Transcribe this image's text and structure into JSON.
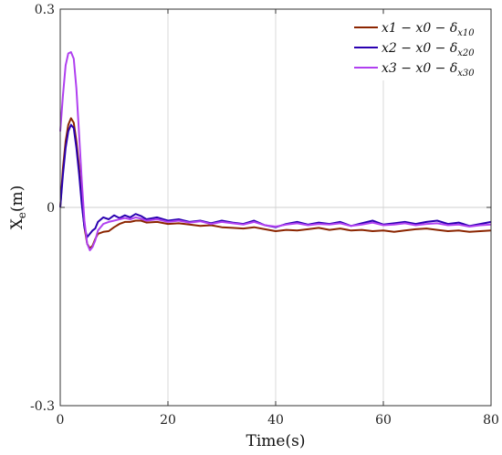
{
  "chart_data": {
    "type": "line",
    "title": "",
    "xlabel": "Time(s)",
    "ylabel_main": "X",
    "ylabel_sub": "e",
    "ylabel_unit": "(m)",
    "xlim": [
      0,
      80
    ],
    "ylim": [
      -0.3,
      0.3
    ],
    "x_ticks": [
      0,
      20,
      40,
      60,
      80
    ],
    "x_tick_labels": [
      "0",
      "20",
      "40",
      "60",
      "80"
    ],
    "y_ticks": [
      -0.3,
      0,
      0.3
    ],
    "y_tick_labels": [
      "-0.3",
      "0",
      "0.3"
    ],
    "grid": "x",
    "legend_position": "top-right",
    "series": [
      {
        "name": "x1 − x0 − δx10",
        "legend_main": "x1 − x0 − δ",
        "legend_sub": "x10",
        "color": "#8b2500",
        "x": [
          0,
          0.5,
          1,
          1.5,
          2,
          2.5,
          3,
          3.5,
          4,
          4.5,
          5,
          5.5,
          6,
          6.5,
          7,
          8,
          9,
          10,
          11,
          12,
          13,
          14,
          15,
          16,
          18,
          20,
          22,
          24,
          26,
          28,
          30,
          32,
          34,
          36,
          38,
          40,
          42,
          44,
          46,
          48,
          50,
          52,
          54,
          56,
          58,
          60,
          62,
          64,
          66,
          68,
          70,
          72,
          74,
          76,
          78,
          80
        ],
        "y": [
          0.0,
          0.06,
          0.1,
          0.125,
          0.135,
          0.128,
          0.1,
          0.06,
          0.01,
          -0.03,
          -0.055,
          -0.062,
          -0.058,
          -0.048,
          -0.04,
          -0.037,
          -0.036,
          -0.03,
          -0.025,
          -0.022,
          -0.022,
          -0.02,
          -0.02,
          -0.023,
          -0.022,
          -0.025,
          -0.024,
          -0.026,
          -0.028,
          -0.027,
          -0.03,
          -0.031,
          -0.032,
          -0.03,
          -0.033,
          -0.036,
          -0.034,
          -0.035,
          -0.033,
          -0.031,
          -0.034,
          -0.032,
          -0.035,
          -0.034,
          -0.036,
          -0.035,
          -0.037,
          -0.035,
          -0.033,
          -0.032,
          -0.034,
          -0.036,
          -0.035,
          -0.037,
          -0.036,
          -0.035
        ]
      },
      {
        "name": "x2 − x0 − δx20",
        "legend_main": "x2 − x0 − δ",
        "legend_sub": "x20",
        "color": "#2a00b0",
        "x": [
          0,
          0.5,
          1,
          1.5,
          2,
          2.5,
          3,
          3.5,
          4,
          4.5,
          5,
          5.5,
          6,
          6.5,
          7,
          8,
          9,
          10,
          11,
          12,
          13,
          14,
          15,
          16,
          18,
          20,
          22,
          24,
          26,
          28,
          30,
          32,
          34,
          36,
          38,
          40,
          42,
          44,
          46,
          48,
          50,
          52,
          54,
          56,
          58,
          60,
          62,
          64,
          66,
          68,
          70,
          72,
          74,
          76,
          78,
          80
        ],
        "y": [
          0.0,
          0.05,
          0.09,
          0.115,
          0.125,
          0.12,
          0.09,
          0.05,
          0.005,
          -0.03,
          -0.045,
          -0.04,
          -0.035,
          -0.032,
          -0.022,
          -0.015,
          -0.018,
          -0.012,
          -0.016,
          -0.012,
          -0.015,
          -0.01,
          -0.013,
          -0.018,
          -0.015,
          -0.02,
          -0.018,
          -0.022,
          -0.02,
          -0.024,
          -0.02,
          -0.023,
          -0.025,
          -0.02,
          -0.027,
          -0.03,
          -0.025,
          -0.022,
          -0.026,
          -0.023,
          -0.025,
          -0.022,
          -0.028,
          -0.024,
          -0.02,
          -0.026,
          -0.024,
          -0.022,
          -0.025,
          -0.022,
          -0.02,
          -0.025,
          -0.023,
          -0.028,
          -0.025,
          -0.022
        ]
      },
      {
        "name": "x3 − x0 − δx30",
        "legend_main": "x3 − x0 − δ",
        "legend_sub": "x30",
        "color": "#b040f0",
        "x": [
          0,
          0.5,
          1,
          1.5,
          2,
          2.5,
          3,
          3.5,
          4,
          4.5,
          5,
          5.5,
          6,
          6.5,
          7,
          8,
          9,
          10,
          11,
          12,
          13,
          14,
          15,
          16,
          18,
          20,
          22,
          24,
          26,
          28,
          30,
          32,
          34,
          36,
          38,
          40,
          42,
          44,
          46,
          48,
          50,
          52,
          54,
          56,
          58,
          60,
          62,
          64,
          66,
          68,
          70,
          72,
          74,
          76,
          78,
          80
        ],
        "y": [
          0.115,
          0.17,
          0.215,
          0.233,
          0.235,
          0.225,
          0.18,
          0.11,
          0.04,
          -0.02,
          -0.055,
          -0.065,
          -0.06,
          -0.05,
          -0.035,
          -0.025,
          -0.022,
          -0.02,
          -0.018,
          -0.016,
          -0.018,
          -0.015,
          -0.017,
          -0.02,
          -0.018,
          -0.022,
          -0.02,
          -0.023,
          -0.021,
          -0.025,
          -0.022,
          -0.024,
          -0.026,
          -0.022,
          -0.027,
          -0.029,
          -0.026,
          -0.024,
          -0.027,
          -0.025,
          -0.026,
          -0.024,
          -0.028,
          -0.026,
          -0.023,
          -0.027,
          -0.026,
          -0.024,
          -0.027,
          -0.025,
          -0.024,
          -0.027,
          -0.026,
          -0.029,
          -0.027,
          -0.026
        ]
      }
    ]
  }
}
